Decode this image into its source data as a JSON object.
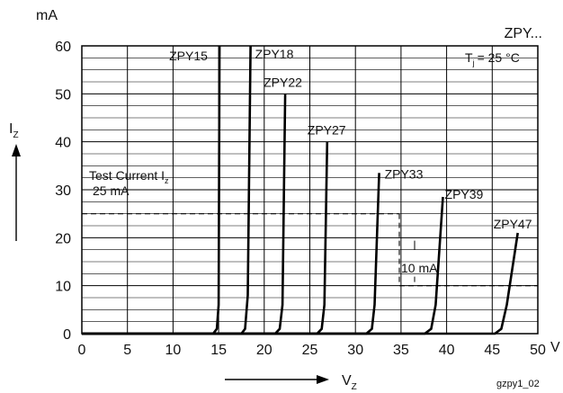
{
  "chart_data": {
    "type": "line",
    "title": "ZPY...",
    "condition": "= 25 °C",
    "condition_symbol": "T",
    "condition_subscript": "j",
    "y_unit_label": "mA",
    "ylabel": "I",
    "ylabel_subscript": "Z",
    "xlabel": "V",
    "xlabel_subscript": "Z",
    "x_unit_label": "V",
    "xlim": [
      0,
      50
    ],
    "ylim": [
      0,
      60
    ],
    "x_ticks": [
      0,
      5,
      10,
      15,
      20,
      25,
      30,
      35,
      40,
      45,
      50
    ],
    "y_ticks": [
      0,
      10,
      20,
      30,
      40,
      50,
      60
    ],
    "grid": true,
    "test_current_text": "Test Current I",
    "test_current_subscript": "z",
    "test_current_value_text": "25 mA",
    "test_current_value": 25,
    "delta_label": "10 mA",
    "delta_value": 10,
    "footer_code": "gzpy1_02",
    "series": [
      {
        "name": "ZPY15",
        "points": [
          [
            0,
            0
          ],
          [
            14.4,
            0
          ],
          [
            14.8,
            1
          ],
          [
            15.0,
            6
          ],
          [
            15.1,
            60
          ]
        ]
      },
      {
        "name": "ZPY18",
        "points": [
          [
            0,
            0
          ],
          [
            17.5,
            0
          ],
          [
            17.9,
            1
          ],
          [
            18.2,
            8
          ],
          [
            18.5,
            60
          ]
        ]
      },
      {
        "name": "ZPY22",
        "points": [
          [
            0,
            0
          ],
          [
            21.2,
            0
          ],
          [
            21.7,
            1
          ],
          [
            22.0,
            6
          ],
          [
            22.3,
            50
          ]
        ]
      },
      {
        "name": "ZPY27",
        "points": [
          [
            0,
            0
          ],
          [
            25.8,
            0
          ],
          [
            26.3,
            1
          ],
          [
            26.6,
            6
          ],
          [
            26.9,
            40
          ]
        ]
      },
      {
        "name": "ZPY33",
        "points": [
          [
            0,
            0
          ],
          [
            31.2,
            0
          ],
          [
            31.8,
            1
          ],
          [
            32.1,
            6
          ],
          [
            32.6,
            33.5
          ]
        ]
      },
      {
        "name": "ZPY39",
        "points": [
          [
            0,
            0
          ],
          [
            37.6,
            0
          ],
          [
            38.3,
            1
          ],
          [
            38.8,
            6
          ],
          [
            39.6,
            28.5
          ]
        ]
      },
      {
        "name": "ZPY47",
        "points": [
          [
            0,
            0
          ],
          [
            45.3,
            0
          ],
          [
            46.0,
            1
          ],
          [
            46.6,
            6
          ],
          [
            47.8,
            21
          ]
        ]
      }
    ]
  }
}
